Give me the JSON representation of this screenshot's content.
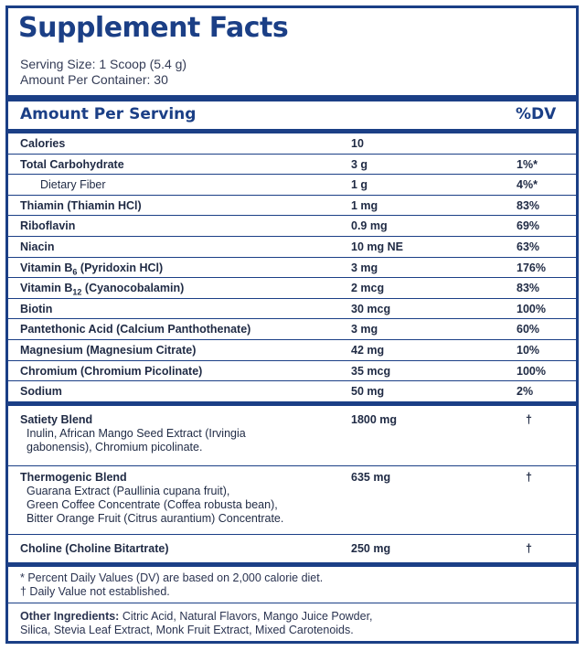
{
  "title": "Supplement Facts",
  "serving_size": "Serving Size: 1 Scoop (5.4 g)",
  "amount_per_container": "Amount Per Container: 30",
  "header": {
    "amount_per_serving": "Amount Per Serving",
    "dv": "%DV"
  },
  "nutrients": [
    {
      "name": "Calories",
      "amount": "10",
      "dv": ""
    },
    {
      "name": "Total Carbohydrate",
      "amount": "3 g",
      "dv": "1%*"
    },
    {
      "name": "Dietary Fiber",
      "amount": "1 g",
      "dv": "4%*"
    },
    {
      "name": "Thiamin (Thiamin HCl)",
      "amount": "1 mg",
      "dv": "83%"
    },
    {
      "name": "Riboflavin",
      "amount": "0.9 mg",
      "dv": "69%"
    },
    {
      "name": "Niacin",
      "amount": "10 mg NE",
      "dv": "63%"
    },
    {
      "name": "Vitamin B6 (Pyridoxin HCl)",
      "name_prefix": "Vitamin B",
      "name_sub": "6",
      "name_suffix": " (Pyridoxin HCl)",
      "amount": "3 mg",
      "dv": "176%"
    },
    {
      "name": "Vitamin B12 (Cyanocobalamin)",
      "name_prefix": "Vitamin B",
      "name_sub": "12",
      "name_suffix": " (Cyanocobalamin)",
      "amount": "2 mcg",
      "dv": "83%"
    },
    {
      "name": "Biotin",
      "amount": "30 mcg",
      "dv": "100%"
    },
    {
      "name": "Pantethonic Acid (Calcium Panthothenate)",
      "amount": "3 mg",
      "dv": "60%"
    },
    {
      "name": "Magnesium (Magnesium Citrate)",
      "amount": "42 mg",
      "dv": "10%"
    },
    {
      "name": "Chromium (Chromium Picolinate)",
      "amount": "35 mcg",
      "dv": "100%"
    },
    {
      "name": "Sodium",
      "amount": "50 mg",
      "dv": "2%"
    }
  ],
  "blends": [
    {
      "name": "Satiety Blend",
      "amount": "1800 mg",
      "dv": "†",
      "desc": [
        "Inulin, African Mango Seed Extract (Irvingia",
        "gabonensis), Chromium picolinate."
      ]
    },
    {
      "name": "Thermogenic Blend",
      "amount": "635 mg",
      "dv": "†",
      "desc": [
        "Guarana Extract (Paullinia cupana fruit),",
        "Green Coffee Concentrate (Coffea robusta bean),",
        "Bitter Orange Fruit (Citrus aurantium) Concentrate."
      ]
    },
    {
      "name": "Choline (Choline Bitartrate)",
      "amount": "250 mg",
      "dv": "†",
      "desc": []
    }
  ],
  "footnotes": [
    "* Percent Daily Values (DV) are based on 2,000 calorie diet.",
    "† Daily Value not established."
  ],
  "other_ingredients": {
    "label": "Other Ingredients:",
    "text": " Citric Acid, Natural Flavors, Mango Juice Powder,",
    "text2": "Silica, Stevia Leaf Extract, Monk Fruit Extract, Mixed Carotenoids."
  },
  "colors": {
    "brand": "#1b3f86",
    "text": "#1f2a44"
  }
}
